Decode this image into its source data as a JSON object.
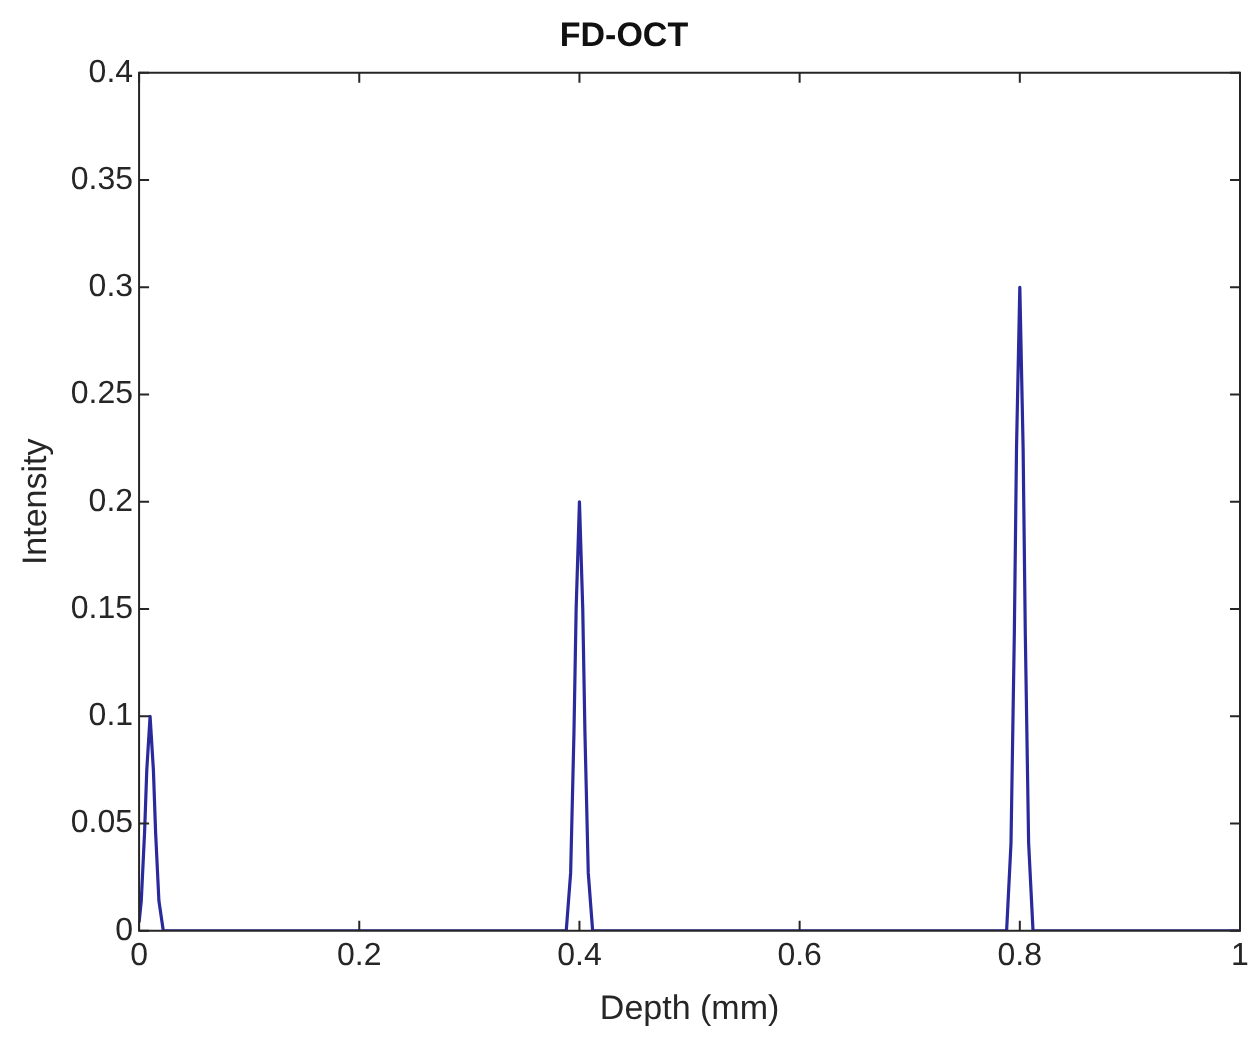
{
  "chart_data": {
    "type": "line",
    "title": "FD-OCT",
    "xlabel": "Depth (mm)",
    "ylabel": "Intensity",
    "x": [
      0,
      0.002,
      0.005,
      0.007,
      0.01,
      0.013,
      0.015,
      0.018,
      0.022,
      0.388,
      0.392,
      0.395,
      0.397,
      0.4,
      0.403,
      0.405,
      0.408,
      0.412,
      0.788,
      0.792,
      0.795,
      0.797,
      0.8,
      0.803,
      0.805,
      0.808,
      0.812,
      1
    ],
    "series": [
      {
        "color": "#2a2a9c",
        "values": [
          0.004,
          0.014,
          0.046,
          0.075,
          0.1,
          0.075,
          0.046,
          0.014,
          0,
          0,
          0.027,
          0.092,
          0.15,
          0.2,
          0.15,
          0.092,
          0.027,
          0,
          0,
          0.041,
          0.138,
          0.225,
          0.3,
          0.225,
          0.138,
          0.041,
          0,
          0
        ]
      }
    ],
    "xlim": [
      0,
      1
    ],
    "xticks": [
      0,
      0.2,
      0.4,
      0.6,
      0.8,
      1
    ],
    "ylim": [
      0,
      0.4
    ],
    "yticks": [
      0,
      0.05,
      0.1,
      0.15,
      0.2,
      0.25,
      0.3,
      0.35,
      0.4
    ],
    "grid": false,
    "legend": false,
    "marker": "none",
    "line_style": "solid"
  }
}
